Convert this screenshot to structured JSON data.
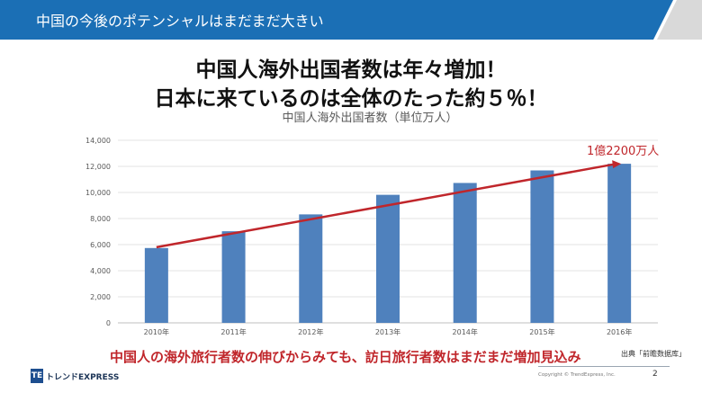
{
  "slide": {
    "header_title": "中国の今後のポテンシャルはまだまだ大きい",
    "headline_line1": "中国人海外出国者数は年々増加！",
    "headline_line2": "日本に来ているのは全体のたった約５％！",
    "footer_message": "中国人の海外旅行者数の伸びからみても、訪日旅行者数はまだまだ増加見込み",
    "source": "出典「前瞻数据库」",
    "logo_mark": "TE",
    "logo_text": "トレンドEXPRESS",
    "copyright": "Copyright © TrendExpress, Inc.",
    "page_number": "2"
  },
  "colors": {
    "header_blue": "#1b6fb5",
    "bar_blue": "#4f81bd",
    "trend_red": "#c0262b"
  },
  "chart_data": {
    "type": "bar",
    "title": "中国人海外出国者数（単位万人）",
    "categories": [
      "2010年",
      "2011年",
      "2012年",
      "2013年",
      "2014年",
      "2015年",
      "2016年"
    ],
    "values": [
      5739,
      7025,
      8318,
      9819,
      10728,
      11689,
      12200
    ],
    "ylim": [
      0,
      14000
    ],
    "yticks": [
      0,
      2000,
      4000,
      6000,
      8000,
      10000,
      12000,
      14000
    ],
    "ytick_labels": [
      "0",
      "2,000",
      "4,000",
      "6,000",
      "8,000",
      "10,000",
      "12,000",
      "14,000"
    ],
    "grid": true,
    "trend_line": {
      "start": 5800,
      "end": 12200
    },
    "annotation": "1億2200万人"
  }
}
